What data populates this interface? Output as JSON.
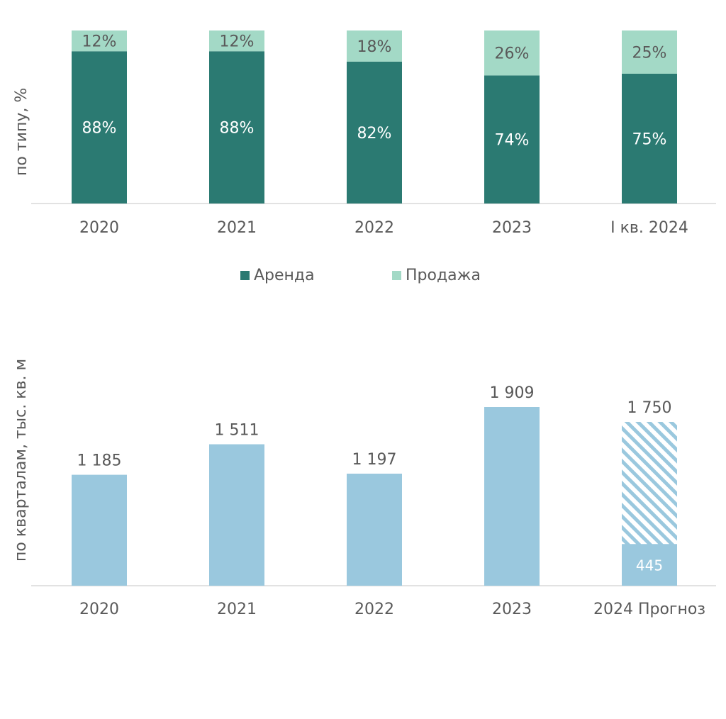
{
  "colors": {
    "rent": "#2b7a72",
    "sale": "#a3d9c6",
    "volume": "#9ac8de",
    "axis": "#d9d9d9",
    "text": "#595959"
  },
  "chart_data": [
    {
      "type": "bar",
      "stacked": true,
      "percent": true,
      "categories": [
        "2020",
        "2021",
        "2022",
        "2023",
        "I кв. 2024"
      ],
      "series": [
        {
          "name": "Аренда",
          "values": [
            88,
            88,
            82,
            74,
            75
          ],
          "labels": [
            "88%",
            "88%",
            "82%",
            "74%",
            "75%"
          ]
        },
        {
          "name": "Продажа",
          "values": [
            12,
            12,
            18,
            26,
            25
          ],
          "labels": [
            "12%",
            "12%",
            "18%",
            "26%",
            "25%"
          ]
        }
      ],
      "ylabel": "по типу, %",
      "ylim": [
        0,
        100
      ],
      "legend": "bottom"
    },
    {
      "type": "bar",
      "categories": [
        "2020",
        "2021",
        "2022",
        "2023",
        "2024 Прогноз"
      ],
      "values": [
        1185,
        1511,
        1197,
        1909,
        1750
      ],
      "labels": [
        "1 185",
        "1 511",
        "1 197",
        "1 909",
        "1 750"
      ],
      "forecast_actual": {
        "category": "2024 Прогноз",
        "value": 445,
        "label": "445"
      },
      "ylabel": "по кварталам,  тыс. кв. м",
      "ylim": [
        0,
        2300
      ]
    }
  ]
}
